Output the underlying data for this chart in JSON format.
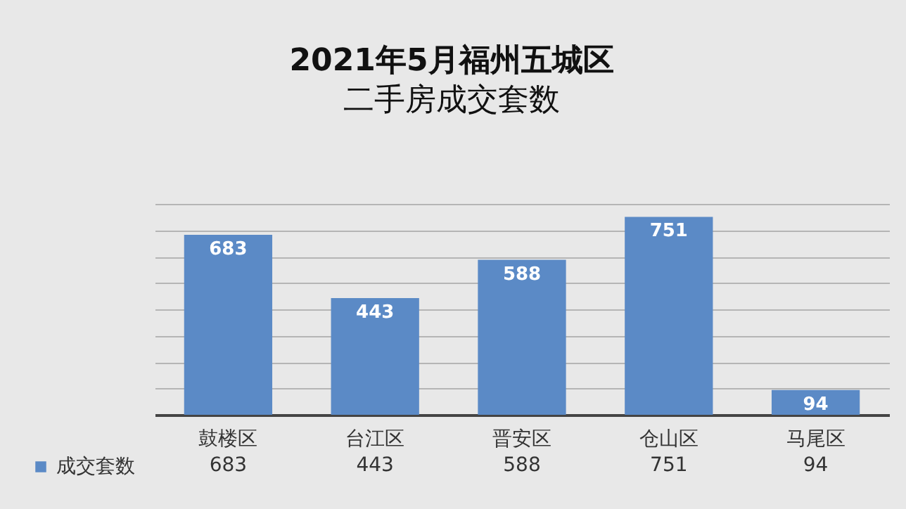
{
  "chart_data": {
    "type": "bar",
    "title": "2021年5月福州五城区",
    "subtitle": "二手房成交套数",
    "categories": [
      "鼓楼区",
      "台江区",
      "晋安区",
      "仓山区",
      "马尾区"
    ],
    "series": [
      {
        "name": "成交套数",
        "color": "#5b8ac6",
        "values": [
          683,
          443,
          588,
          751,
          94
        ]
      }
    ],
    "annotations": [
      "683",
      "443",
      "588",
      "751",
      "94"
    ],
    "ylim": [
      0,
      800
    ],
    "grid": "y",
    "tick_labels": "x",
    "legend": "bottom",
    "data_labels": true
  }
}
